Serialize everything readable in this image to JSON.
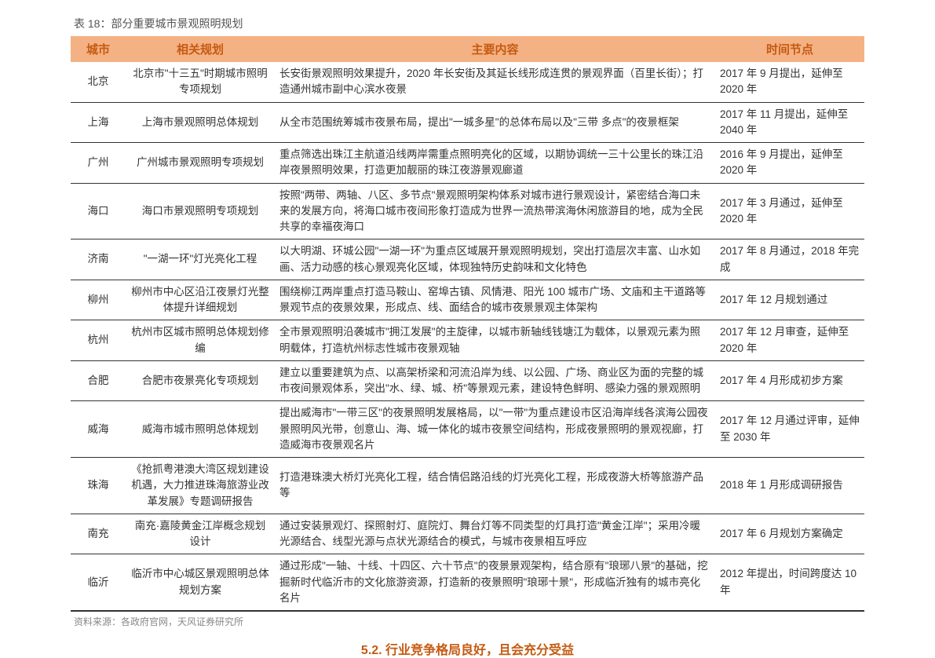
{
  "caption": "表 18：部分重要城市景观照明规划",
  "columns": [
    "城市",
    "相关规划",
    "主要内容",
    "时间节点"
  ],
  "rows": [
    {
      "city": "北京",
      "plan": "北京市\"十三五\"时期城市照明专项规划",
      "content": "长安街景观照明效果提升，2020 年长安街及其延长线形成连贯的景观界面（百里长街）；打造通州城市副中心滨水夜景",
      "time": "2017 年 9 月提出，延伸至 2020 年"
    },
    {
      "city": "上海",
      "plan": "上海市景观照明总体规划",
      "content": "从全市范围统筹城市夜景布局，提出\"一城多星\"的总体布局以及\"三带 多点\"的夜景框架",
      "time": "2017 年 11 月提出，延伸至 2040 年"
    },
    {
      "city": "广州",
      "plan": "广州城市景观照明专项规划",
      "content": "重点筛选出珠江主航道沿线两岸需重点照明亮化的区域，以期协调统一三十公里长的珠江沿岸夜景照明效果，打造更加靓丽的珠江夜游景观廊道",
      "time": "2016 年 9 月提出，延伸至 2020 年"
    },
    {
      "city": "海口",
      "plan": "海口市景观照明专项规划",
      "content": "按照\"两带、两轴、八区、多节点\"景观照明架构体系对城市进行景观设计，紧密结合海口未来的发展方向，将海口城市夜间形象打造成为世界一流热带滨海休闲旅游目的地，成为全民共享的幸福夜海口",
      "time": "2017 年 3 月通过，延伸至 2020 年"
    },
    {
      "city": "济南",
      "plan": "\"一湖一环\"灯光亮化工程",
      "content": "以大明湖、环城公园\"一湖一环\"为重点区域展开景观照明规划，突出打造层次丰富、山水如画、活力动感的核心景观亮化区域，体现独特历史韵味和文化特色",
      "time": "2017 年 8 月通过，2018 年完成"
    },
    {
      "city": "柳州",
      "plan": "柳州市中心区沿江夜景灯光整体提升详细规划",
      "content": "围绕柳江两岸重点打造马鞍山、窑埠古镇、风情港、阳光 100 城市广场、文庙和主干道路等景观节点的夜景效果，形成点、线、面结合的城市夜景景观主体架构",
      "time": "2017 年 12 月规划通过"
    },
    {
      "city": "杭州",
      "plan": "杭州市区城市照明总体规划修编",
      "content": "全市景观照明沿袭城市\"拥江发展\"的主旋律，以城市新轴线钱塘江为载体，以景观元素为照明载体，打造杭州标志性城市夜景观轴",
      "time": "2017 年 12 月审查，延伸至 2020 年"
    },
    {
      "city": "合肥",
      "plan": "合肥市夜景亮化专项规划",
      "content": "建立以重要建筑为点、以高架桥梁和河流沿岸为线、以公园、广场、商业区为面的完整的城市夜间景观体系，突出\"水、绿、城、桥\"等景观元素，建设特色鲜明、感染力强的景观照明",
      "time": "2017 年 4 月形成初步方案"
    },
    {
      "city": "威海",
      "plan": "威海市城市照明总体规划",
      "content": "提出威海市\"一带三区\"的夜景照明发展格局，以\"一带\"为重点建设市区沿海岸线各滨海公园夜景照明风光带，创意山、海、城一体化的城市夜景空间结构，形成夜景照明的景观视廊，打造威海市夜景观名片",
      "time": "2017 年 12 月通过评审，延伸至 2030 年"
    },
    {
      "city": "珠海",
      "plan": "《抢抓粤港澳大湾区规划建设机遇，大力推进珠海旅游业改革发展》专题调研报告",
      "content": "打造港珠澳大桥灯光亮化工程，结合情侣路沿线的灯光亮化工程，形成夜游大桥等旅游产品等",
      "time": "2018 年 1 月形成调研报告"
    },
    {
      "city": "南充",
      "plan": "南充·嘉陵黄金江岸概念规划设计",
      "content": "通过安装景观灯、探照射灯、庭院灯、舞台灯等不同类型的灯具打造\"黄金江岸\"；采用冷暖光源结合、线型光源与点状光源结合的模式，与城市夜景相互呼应",
      "time": "2017 年 6 月规划方案确定"
    },
    {
      "city": "临沂",
      "plan": "临沂市中心城区景观照明总体规划方案",
      "content": "通过形成\"一轴、十线、十四区、六十节点\"的夜景景观架构，结合原有\"琅琊八景\"的基础，挖掘新时代临沂市的文化旅游资源，打造新的夜景照明\"琅琊十景\"，形成临沂独有的城市亮化名片",
      "time": "2012 年提出，时间跨度达 10 年"
    }
  ],
  "source": "资料来源：各政府官网，天风证券研究所",
  "bottom_fragment": "5.2. 行业竞争格局良好，且会充分受益"
}
